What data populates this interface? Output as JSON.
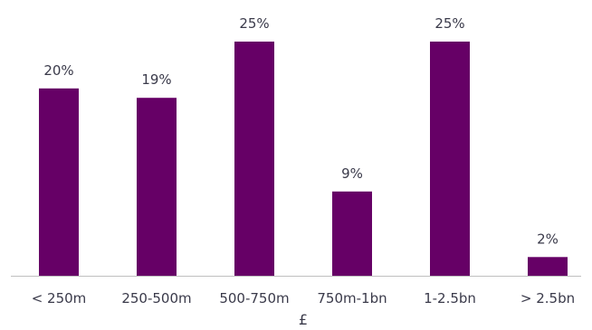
{
  "chart_data": {
    "type": "bar",
    "categories": [
      "< 250m",
      "250-500m",
      "500-750m",
      "750m-1bn",
      "1-2.5bn",
      "> 2.5bn"
    ],
    "values": [
      20,
      19,
      25,
      9,
      25,
      2
    ],
    "data_labels": [
      "20%",
      "19%",
      "25%",
      "9%",
      "25%",
      "2%"
    ],
    "title": "",
    "xlabel": "£",
    "ylabel": "",
    "ylim": [
      0,
      25
    ],
    "grid": false,
    "legend": "none",
    "bar_color": "#660066"
  }
}
